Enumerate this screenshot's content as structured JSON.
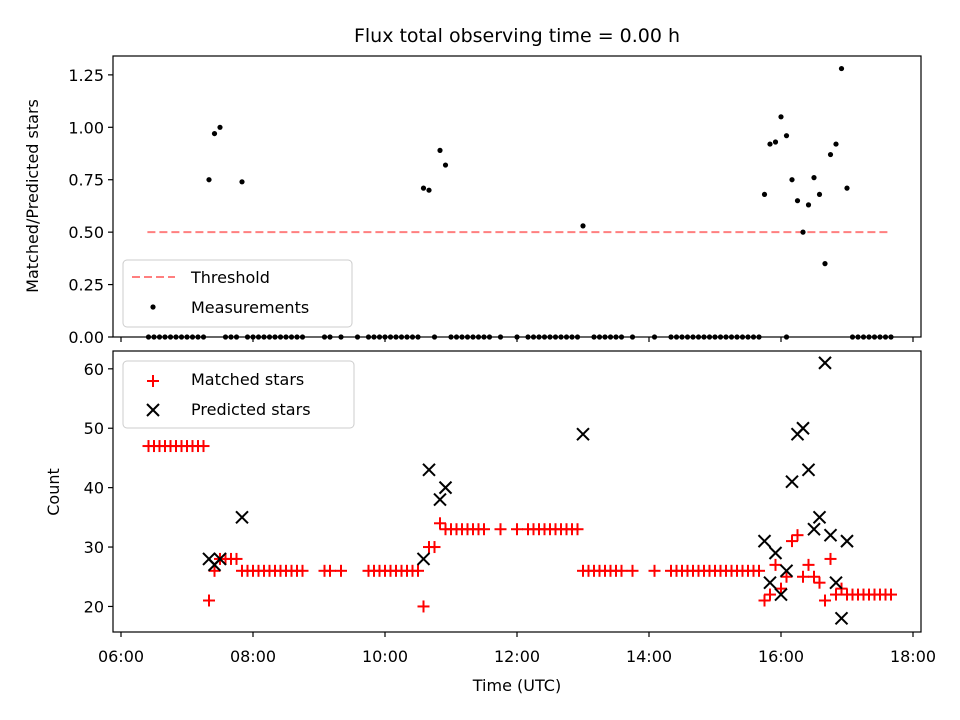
{
  "chart_data": [
    {
      "type": "scatter",
      "title": "Flux total observing time = 0.00 h",
      "xlabel": "",
      "ylabel": "Matched/Predicted stars",
      "xlim": [
        "06:00",
        "18:00"
      ],
      "ylim": [
        0.0,
        1.34
      ],
      "yticks": [
        "0.00",
        "0.25",
        "0.50",
        "0.75",
        "1.00",
        "1.25"
      ],
      "legend": {
        "placement": "lower-left",
        "entries": [
          "Threshold",
          "Measurements"
        ]
      },
      "threshold": {
        "name": "Threshold",
        "value": 0.5,
        "x_start": "06:24",
        "x_end": "17:40",
        "color": "#ff7f7f",
        "style": "dashed"
      },
      "series": [
        {
          "name": "Measurements",
          "color": "#000000",
          "marker": "dot",
          "points": [
            [
              "07:20",
              0.75
            ],
            [
              "07:25",
              0.97
            ],
            [
              "07:30",
              1.0
            ],
            [
              "07:50",
              0.74
            ],
            [
              "10:35",
              0.71
            ],
            [
              "10:40",
              0.7
            ],
            [
              "10:50",
              0.89
            ],
            [
              "10:55",
              0.82
            ],
            [
              "13:00",
              0.53
            ],
            [
              "15:45",
              0.68
            ],
            [
              "15:50",
              0.92
            ],
            [
              "15:55",
              0.93
            ],
            [
              "16:00",
              1.05
            ],
            [
              "16:05",
              0.96
            ],
            [
              "16:10",
              0.75
            ],
            [
              "16:15",
              0.65
            ],
            [
              "16:20",
              0.5
            ],
            [
              "16:25",
              0.63
            ],
            [
              "16:30",
              0.76
            ],
            [
              "16:35",
              0.68
            ],
            [
              "16:40",
              0.35
            ],
            [
              "16:45",
              0.87
            ],
            [
              "16:50",
              0.92
            ],
            [
              "16:55",
              1.28
            ],
            [
              "17:00",
              0.71
            ],
            [
              "06:25",
              0
            ],
            [
              "06:30",
              0
            ],
            [
              "06:35",
              0
            ],
            [
              "06:40",
              0
            ],
            [
              "06:45",
              0
            ],
            [
              "06:50",
              0
            ],
            [
              "06:55",
              0
            ],
            [
              "07:00",
              0
            ],
            [
              "07:05",
              0
            ],
            [
              "07:10",
              0
            ],
            [
              "07:15",
              0
            ],
            [
              "07:35",
              0
            ],
            [
              "07:40",
              0
            ],
            [
              "07:45",
              0
            ],
            [
              "07:55",
              0
            ],
            [
              "08:00",
              0
            ],
            [
              "08:05",
              0
            ],
            [
              "08:10",
              0
            ],
            [
              "08:15",
              0
            ],
            [
              "08:20",
              0
            ],
            [
              "08:25",
              0
            ],
            [
              "08:30",
              0
            ],
            [
              "08:35",
              0
            ],
            [
              "08:40",
              0
            ],
            [
              "08:45",
              0
            ],
            [
              "09:05",
              0
            ],
            [
              "09:10",
              0
            ],
            [
              "09:20",
              0
            ],
            [
              "09:35",
              0
            ],
            [
              "09:45",
              0
            ],
            [
              "09:50",
              0
            ],
            [
              "09:55",
              0
            ],
            [
              "10:00",
              0
            ],
            [
              "10:05",
              0
            ],
            [
              "10:10",
              0
            ],
            [
              "10:15",
              0
            ],
            [
              "10:20",
              0
            ],
            [
              "10:25",
              0
            ],
            [
              "10:30",
              0
            ],
            [
              "10:45",
              0
            ],
            [
              "11:00",
              0
            ],
            [
              "11:05",
              0
            ],
            [
              "11:10",
              0
            ],
            [
              "11:15",
              0
            ],
            [
              "11:20",
              0
            ],
            [
              "11:25",
              0
            ],
            [
              "11:30",
              0
            ],
            [
              "11:35",
              0
            ],
            [
              "11:45",
              0
            ],
            [
              "12:00",
              0
            ],
            [
              "12:10",
              0
            ],
            [
              "12:15",
              0
            ],
            [
              "12:20",
              0
            ],
            [
              "12:25",
              0
            ],
            [
              "12:30",
              0
            ],
            [
              "12:35",
              0
            ],
            [
              "12:40",
              0
            ],
            [
              "12:45",
              0
            ],
            [
              "12:50",
              0
            ],
            [
              "12:55",
              0
            ],
            [
              "13:10",
              0
            ],
            [
              "13:15",
              0
            ],
            [
              "13:20",
              0
            ],
            [
              "13:25",
              0
            ],
            [
              "13:30",
              0
            ],
            [
              "13:35",
              0
            ],
            [
              "13:45",
              0
            ],
            [
              "14:05",
              0
            ],
            [
              "14:20",
              0
            ],
            [
              "14:25",
              0
            ],
            [
              "14:30",
              0
            ],
            [
              "14:35",
              0
            ],
            [
              "14:40",
              0
            ],
            [
              "14:45",
              0
            ],
            [
              "14:50",
              0
            ],
            [
              "14:55",
              0
            ],
            [
              "15:00",
              0
            ],
            [
              "15:05",
              0
            ],
            [
              "15:10",
              0
            ],
            [
              "15:15",
              0
            ],
            [
              "15:20",
              0
            ],
            [
              "15:25",
              0
            ],
            [
              "15:30",
              0
            ],
            [
              "15:35",
              0
            ],
            [
              "15:40",
              0
            ],
            [
              "16:05",
              0
            ],
            [
              "17:05",
              0
            ],
            [
              "17:10",
              0
            ],
            [
              "17:15",
              0
            ],
            [
              "17:20",
              0
            ],
            [
              "17:25",
              0
            ],
            [
              "17:30",
              0
            ],
            [
              "17:35",
              0
            ],
            [
              "17:40",
              0
            ]
          ]
        }
      ]
    },
    {
      "type": "scatter",
      "title": "",
      "xlabel": "Time (UTC)",
      "ylabel": "Count",
      "xlim": [
        "06:00",
        "18:00"
      ],
      "xticks": [
        "06:00",
        "08:00",
        "10:00",
        "12:00",
        "14:00",
        "16:00",
        "18:00"
      ],
      "ylim": [
        15.7,
        63.0
      ],
      "yticks": [
        "20",
        "30",
        "40",
        "50",
        "60"
      ],
      "legend": {
        "placement": "upper-left",
        "entries": [
          "Matched stars",
          "Predicted stars"
        ]
      },
      "series": [
        {
          "name": "Matched stars",
          "color": "#ff0000",
          "marker": "plus",
          "points": [
            [
              "06:25",
              47
            ],
            [
              "06:30",
              47
            ],
            [
              "06:35",
              47
            ],
            [
              "06:40",
              47
            ],
            [
              "06:45",
              47
            ],
            [
              "06:50",
              47
            ],
            [
              "06:55",
              47
            ],
            [
              "07:00",
              47
            ],
            [
              "07:05",
              47
            ],
            [
              "07:10",
              47
            ],
            [
              "07:15",
              47
            ],
            [
              "07:20",
              21
            ],
            [
              "07:25",
              26
            ],
            [
              "07:30",
              28
            ],
            [
              "07:35",
              28
            ],
            [
              "07:40",
              28
            ],
            [
              "07:45",
              28
            ],
            [
              "07:50",
              26
            ],
            [
              "07:55",
              26
            ],
            [
              "08:00",
              26
            ],
            [
              "08:05",
              26
            ],
            [
              "08:10",
              26
            ],
            [
              "08:15",
              26
            ],
            [
              "08:20",
              26
            ],
            [
              "08:25",
              26
            ],
            [
              "08:30",
              26
            ],
            [
              "08:35",
              26
            ],
            [
              "08:40",
              26
            ],
            [
              "08:45",
              26
            ],
            [
              "09:05",
              26
            ],
            [
              "09:10",
              26
            ],
            [
              "09:20",
              26
            ],
            [
              "09:45",
              26
            ],
            [
              "09:50",
              26
            ],
            [
              "09:55",
              26
            ],
            [
              "10:00",
              26
            ],
            [
              "10:05",
              26
            ],
            [
              "10:10",
              26
            ],
            [
              "10:15",
              26
            ],
            [
              "10:20",
              26
            ],
            [
              "10:25",
              26
            ],
            [
              "10:30",
              26
            ],
            [
              "10:35",
              20
            ],
            [
              "10:40",
              30
            ],
            [
              "10:45",
              30
            ],
            [
              "10:50",
              34
            ],
            [
              "10:55",
              33
            ],
            [
              "11:00",
              33
            ],
            [
              "11:05",
              33
            ],
            [
              "11:10",
              33
            ],
            [
              "11:15",
              33
            ],
            [
              "11:20",
              33
            ],
            [
              "11:25",
              33
            ],
            [
              "11:30",
              33
            ],
            [
              "11:45",
              33
            ],
            [
              "12:00",
              33
            ],
            [
              "12:10",
              33
            ],
            [
              "12:15",
              33
            ],
            [
              "12:20",
              33
            ],
            [
              "12:25",
              33
            ],
            [
              "12:30",
              33
            ],
            [
              "12:35",
              33
            ],
            [
              "12:40",
              33
            ],
            [
              "12:45",
              33
            ],
            [
              "12:50",
              33
            ],
            [
              "12:55",
              33
            ],
            [
              "13:00",
              26
            ],
            [
              "13:05",
              26
            ],
            [
              "13:10",
              26
            ],
            [
              "13:15",
              26
            ],
            [
              "13:20",
              26
            ],
            [
              "13:25",
              26
            ],
            [
              "13:30",
              26
            ],
            [
              "13:35",
              26
            ],
            [
              "13:45",
              26
            ],
            [
              "14:05",
              26
            ],
            [
              "14:20",
              26
            ],
            [
              "14:25",
              26
            ],
            [
              "14:30",
              26
            ],
            [
              "14:35",
              26
            ],
            [
              "14:40",
              26
            ],
            [
              "14:45",
              26
            ],
            [
              "14:50",
              26
            ],
            [
              "14:55",
              26
            ],
            [
              "15:00",
              26
            ],
            [
              "15:05",
              26
            ],
            [
              "15:10",
              26
            ],
            [
              "15:15",
              26
            ],
            [
              "15:20",
              26
            ],
            [
              "15:25",
              26
            ],
            [
              "15:30",
              26
            ],
            [
              "15:35",
              26
            ],
            [
              "15:40",
              26
            ],
            [
              "15:45",
              21
            ],
            [
              "15:50",
              22
            ],
            [
              "15:55",
              27
            ],
            [
              "16:00",
              23
            ],
            [
              "16:05",
              25
            ],
            [
              "16:10",
              31
            ],
            [
              "16:15",
              32
            ],
            [
              "16:20",
              25
            ],
            [
              "16:25",
              27
            ],
            [
              "16:30",
              25
            ],
            [
              "16:35",
              24
            ],
            [
              "16:40",
              21
            ],
            [
              "16:45",
              28
            ],
            [
              "16:50",
              22
            ],
            [
              "16:55",
              23
            ],
            [
              "17:00",
              22
            ],
            [
              "17:05",
              22
            ],
            [
              "17:10",
              22
            ],
            [
              "17:15",
              22
            ],
            [
              "17:20",
              22
            ],
            [
              "17:25",
              22
            ],
            [
              "17:30",
              22
            ],
            [
              "17:35",
              22
            ],
            [
              "17:40",
              22
            ]
          ]
        },
        {
          "name": "Predicted stars",
          "color": "#000000",
          "marker": "x",
          "points": [
            [
              "07:20",
              28
            ],
            [
              "07:25",
              27
            ],
            [
              "07:30",
              28
            ],
            [
              "07:50",
              35
            ],
            [
              "10:35",
              28
            ],
            [
              "10:40",
              43
            ],
            [
              "10:50",
              38
            ],
            [
              "10:55",
              40
            ],
            [
              "13:00",
              49
            ],
            [
              "15:45",
              31
            ],
            [
              "15:50",
              24
            ],
            [
              "15:55",
              29
            ],
            [
              "16:00",
              22
            ],
            [
              "16:05",
              26
            ],
            [
              "16:10",
              41
            ],
            [
              "16:15",
              49
            ],
            [
              "16:20",
              50
            ],
            [
              "16:25",
              43
            ],
            [
              "16:30",
              33
            ],
            [
              "16:35",
              35
            ],
            [
              "16:40",
              61
            ],
            [
              "16:45",
              32
            ],
            [
              "16:50",
              24
            ],
            [
              "16:55",
              18
            ],
            [
              "17:00",
              31
            ]
          ]
        }
      ]
    }
  ]
}
